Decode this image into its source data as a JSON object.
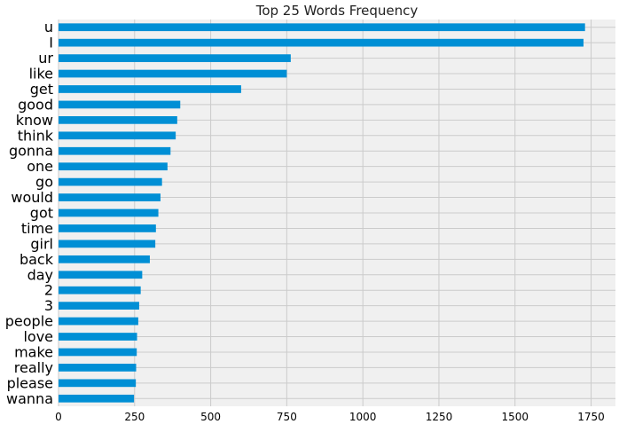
{
  "chart_data": {
    "type": "bar",
    "orientation": "horizontal",
    "title": "Top 25 Words Frequency",
    "xlabel": "",
    "ylabel": "",
    "categories": [
      "u",
      "I",
      "ur",
      "like",
      "get",
      "good",
      "know",
      "think",
      "gonna",
      "one",
      "go",
      "would",
      "got",
      "time",
      "girl",
      "back",
      "day",
      "2",
      "3",
      "people",
      "love",
      "make",
      "really",
      "please",
      "wanna"
    ],
    "values": [
      1730,
      1725,
      763,
      750,
      600,
      400,
      390,
      385,
      368,
      358,
      340,
      335,
      328,
      320,
      318,
      300,
      275,
      270,
      265,
      262,
      258,
      257,
      255,
      254,
      248
    ],
    "xlim": [
      0,
      1830
    ],
    "xticks": [
      0,
      250,
      500,
      750,
      1000,
      1250,
      1500,
      1750
    ],
    "xtick_labels": [
      "0",
      "250",
      "500",
      "750",
      "1000",
      "1250",
      "1500",
      "1750"
    ],
    "grid": true,
    "bar_color": "#008fd5",
    "background_color": "#f0f0f0",
    "grid_color": "#cbcbcb",
    "legend": "none"
  }
}
